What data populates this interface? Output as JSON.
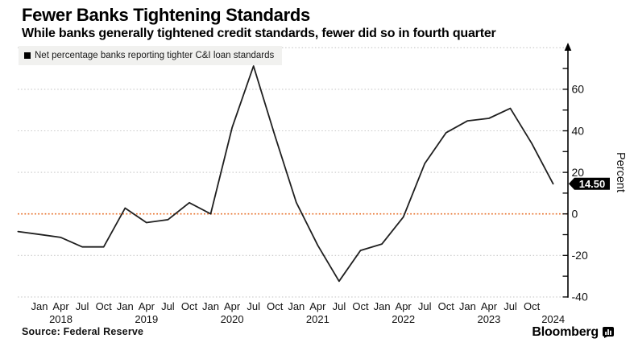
{
  "header": {
    "title": "Fewer Banks Tightening Standards",
    "subtitle": "While banks generally tightened credit standards, fewer did so in fourth quarter"
  },
  "legend": {
    "swatch_icon": "black-square",
    "label": "Net percentage banks reporting tighter C&I loan standards"
  },
  "footer": {
    "source": "Source: Federal Reserve",
    "brand": "Bloomberg",
    "brand_icon": "bar-chart-icon"
  },
  "chart_data": {
    "type": "line",
    "title": "Fewer Banks Tightening Standards",
    "subtitle": "While banks generally tightened credit standards, fewer did so in fourth quarter",
    "series": [
      {
        "name": "Net percentage banks reporting tighter C&I loan standards",
        "x": [
          "2017-10",
          "2018-01",
          "2018-04",
          "2018-07",
          "2018-10",
          "2019-01",
          "2019-04",
          "2019-07",
          "2019-10",
          "2020-01",
          "2020-04",
          "2020-07",
          "2020-10",
          "2021-01",
          "2021-04",
          "2021-07",
          "2021-10",
          "2022-01",
          "2022-04",
          "2022-07",
          "2022-10",
          "2023-01",
          "2023-04",
          "2023-07",
          "2023-10",
          "2024-01"
        ],
        "values": [
          -8.5,
          -9.9,
          -11.3,
          -15.9,
          -15.9,
          2.8,
          -4.2,
          -2.8,
          5.4,
          0.0,
          41.5,
          71.2,
          37.7,
          5.5,
          -15.1,
          -32.4,
          -17.6,
          -14.5,
          -1.5,
          24.2,
          39.1,
          44.8,
          46.0,
          50.8,
          33.9,
          14.5
        ]
      }
    ],
    "ylabel": "Percent",
    "ylim": [
      -45,
      82
    ],
    "ytick_labels": [
      60,
      40,
      20,
      0,
      -20,
      -40
    ],
    "ytick_minor_step": 10,
    "ytick_minor_range": [
      -40,
      70
    ],
    "grid_values": [
      80,
      60,
      40,
      20,
      -20,
      -40
    ],
    "zero_line_value": 0,
    "grid_style": "dotted",
    "legend_position": "top-left",
    "x_quarter_labels": [
      "Jan",
      "Apr",
      "Jul",
      "Oct"
    ],
    "x_year_labels": [
      "2018",
      "2019",
      "2020",
      "2021",
      "2022",
      "2023"
    ],
    "final_year_label": "2024",
    "last_value_label": "14.50",
    "colors": {
      "line": "#1f1f1f",
      "grid": "#c8c8c8",
      "zero_line": "#e8702a",
      "badge_bg": "#000000",
      "badge_text": "#ffffff",
      "axis": "#000000"
    }
  }
}
